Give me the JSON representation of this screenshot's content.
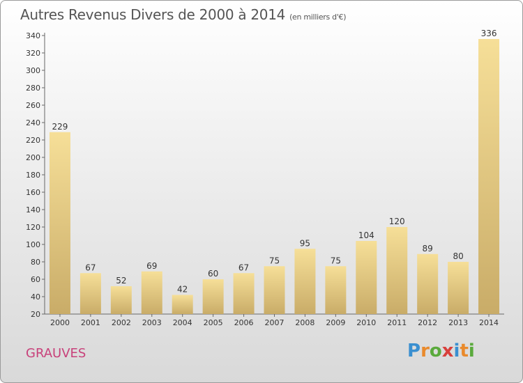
{
  "title": "Autres Revenus Divers de 2000 à 2014",
  "subtitle": "(en milliers d'€)",
  "commune": "GRAUVES",
  "logo": {
    "letters": [
      "P",
      "r",
      "o",
      "x",
      "i",
      "t",
      "i"
    ],
    "colors": [
      "#3a8fd0",
      "#e98a2c",
      "#5aaa3c",
      "#d8403c",
      "#3a8fd0",
      "#e98a2c",
      "#5aaa3c"
    ]
  },
  "colors": {
    "bar_light": "#f6df98",
    "bar_dark": "#c9ac68",
    "commune": "#c8417a",
    "text": "#555555"
  },
  "chart_data": {
    "type": "bar",
    "categories": [
      "2000",
      "2001",
      "2002",
      "2003",
      "2004",
      "2005",
      "2006",
      "2007",
      "2008",
      "2009",
      "2010",
      "2011",
      "2012",
      "2013",
      "2014"
    ],
    "values": [
      229,
      67,
      52,
      69,
      42,
      60,
      67,
      75,
      95,
      75,
      104,
      120,
      89,
      80,
      336
    ],
    "ylim": [
      20,
      340
    ],
    "yticks": [
      20,
      40,
      60,
      80,
      100,
      120,
      140,
      160,
      180,
      200,
      220,
      240,
      260,
      280,
      300,
      320,
      340
    ],
    "grid": false,
    "xlabel": "",
    "ylabel": ""
  }
}
